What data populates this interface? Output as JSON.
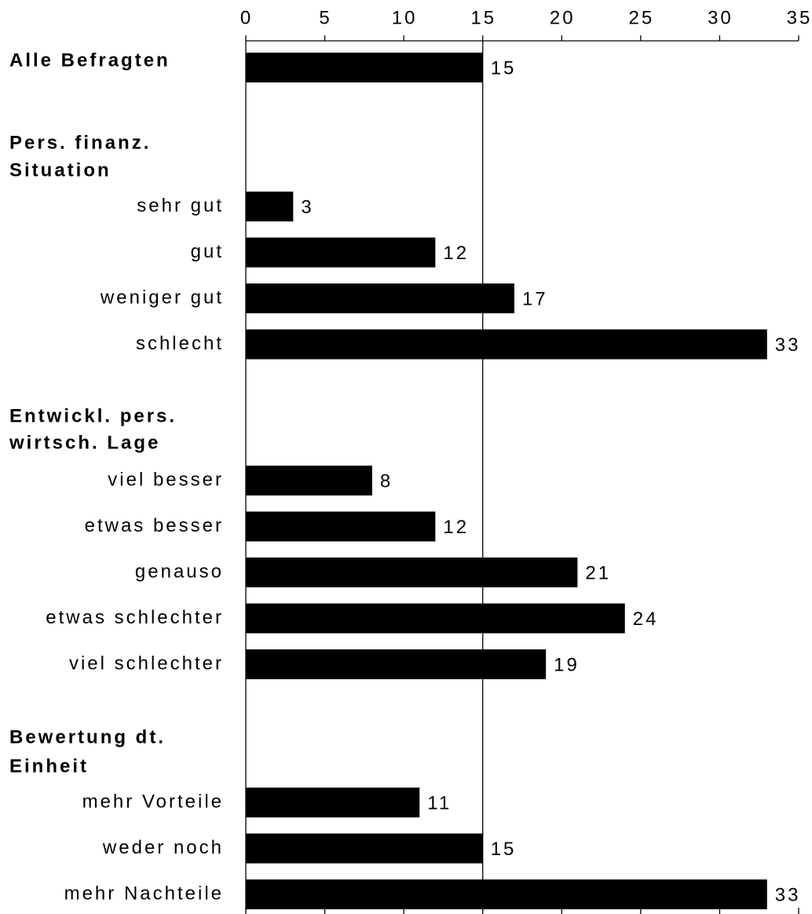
{
  "chart_data": {
    "type": "bar",
    "orientation": "horizontal",
    "color": "#000000",
    "xlim": [
      0,
      35
    ],
    "xticks": [
      0,
      5,
      10,
      15,
      20,
      25,
      30,
      35
    ],
    "reference_line": 15,
    "groups": [
      {
        "title": [
          "Alle Befragten"
        ],
        "value": 15
      },
      {
        "title": [
          "Pers. finanz.",
          "Situation"
        ],
        "categories": [
          "sehr gut",
          "gut",
          "weniger gut",
          "schlecht"
        ],
        "values": [
          3,
          12,
          17,
          33
        ]
      },
      {
        "title": [
          "Entwickl. pers.",
          "wirtsch. Lage"
        ],
        "categories": [
          "viel besser",
          "etwas besser",
          "genauso",
          "etwas schlechter",
          "viel schlechter"
        ],
        "values": [
          8,
          12,
          21,
          24,
          19
        ]
      },
      {
        "title": [
          "Bewertung dt.",
          "Einheit"
        ],
        "categories": [
          "mehr Vorteile",
          "weder noch",
          "mehr Nachteile"
        ],
        "values": [
          11,
          15,
          33
        ]
      }
    ]
  }
}
